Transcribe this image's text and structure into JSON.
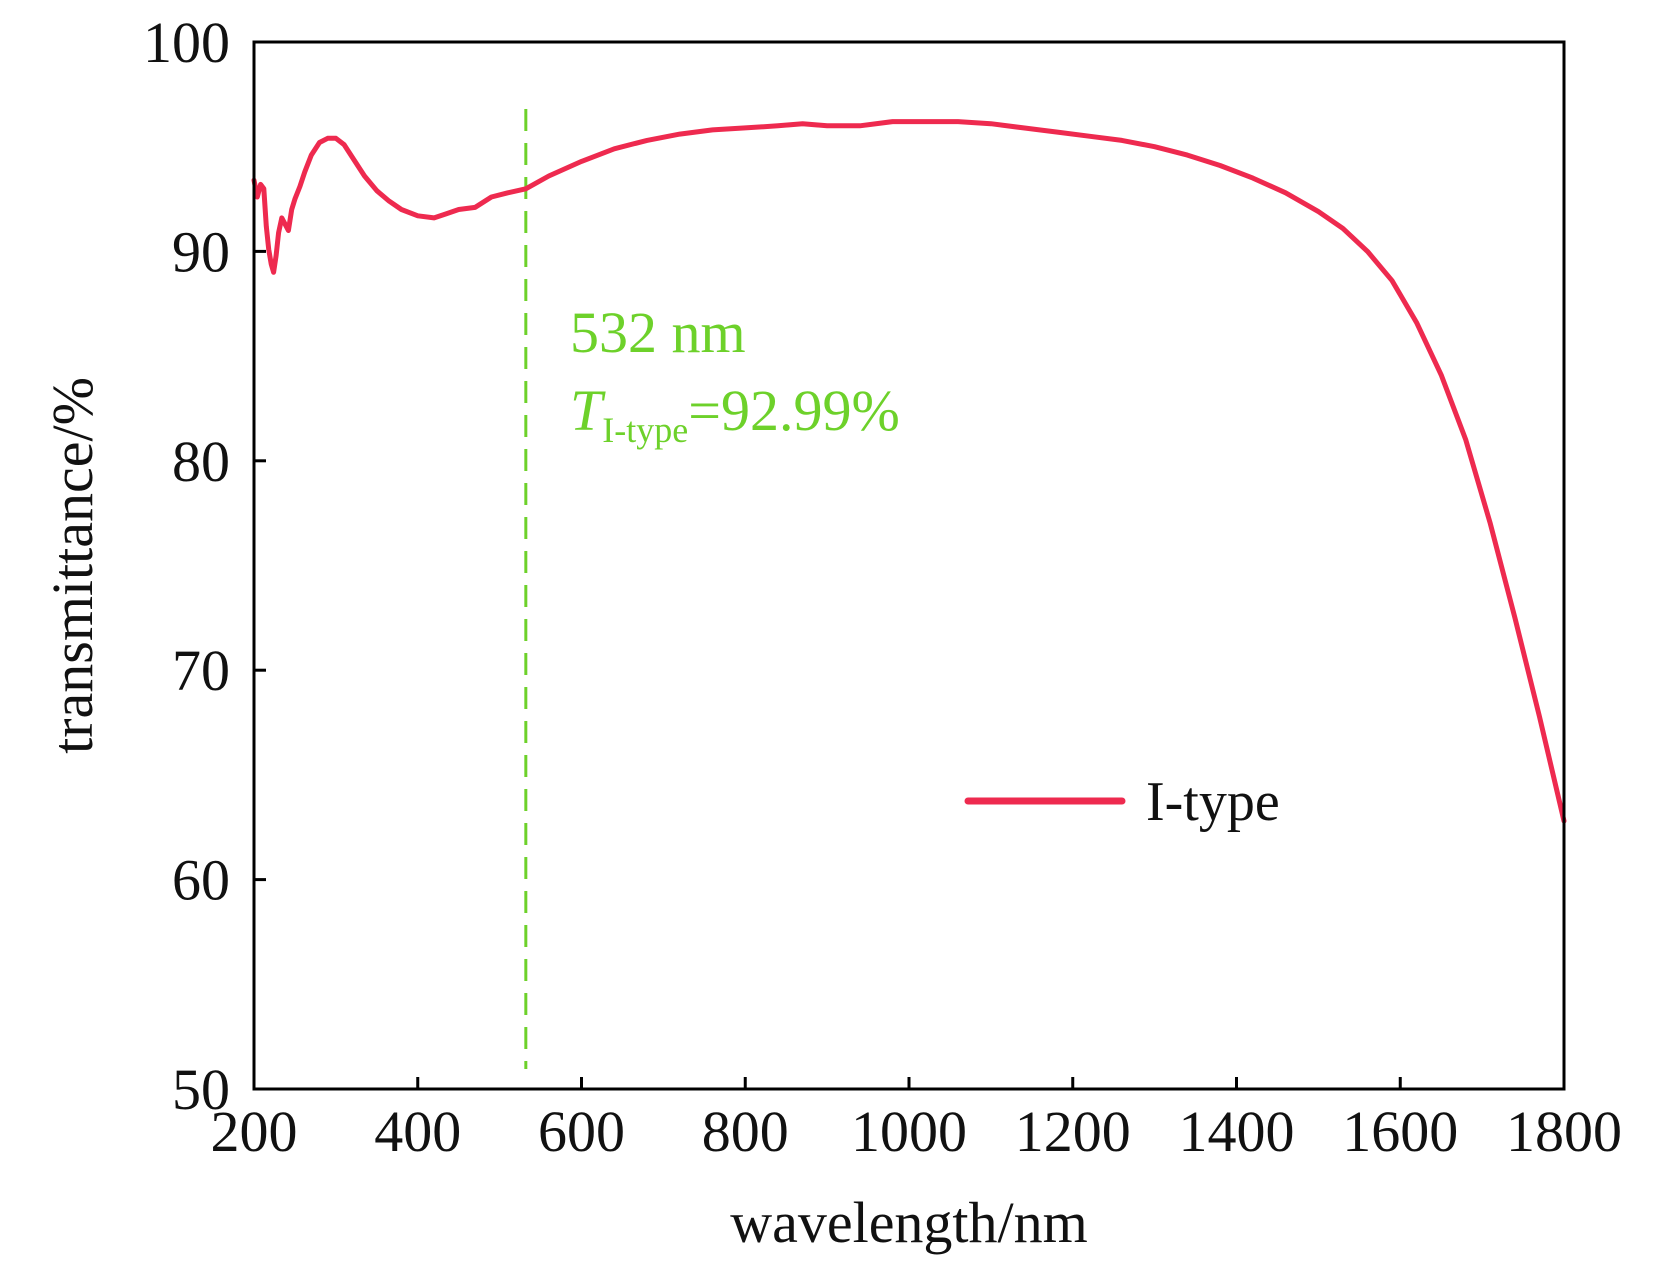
{
  "chart_data": {
    "type": "line",
    "xlabel": "wavelength/nm",
    "ylabel": "transmittance/%",
    "xlim": [
      200,
      1800
    ],
    "ylim": [
      50,
      100
    ],
    "x_ticks": [
      200,
      400,
      600,
      800,
      1000,
      1200,
      1400,
      1600,
      1800
    ],
    "y_ticks": [
      50,
      60,
      70,
      80,
      90,
      100
    ],
    "grid": false,
    "legend_position": "center-right",
    "series": [
      {
        "name": "I-type",
        "color": "#ee2a4f",
        "points": [
          [
            200,
            93.4
          ],
          [
            204,
            92.6
          ],
          [
            208,
            93.2
          ],
          [
            212,
            93.0
          ],
          [
            215,
            91.2
          ],
          [
            218,
            90.1
          ],
          [
            221,
            89.4
          ],
          [
            224,
            89.0
          ],
          [
            227,
            89.8
          ],
          [
            230,
            90.9
          ],
          [
            234,
            91.6
          ],
          [
            238,
            91.3
          ],
          [
            242,
            91.0
          ],
          [
            246,
            92.0
          ],
          [
            250,
            92.5
          ],
          [
            256,
            93.1
          ],
          [
            262,
            93.8
          ],
          [
            270,
            94.6
          ],
          [
            280,
            95.2
          ],
          [
            290,
            95.4
          ],
          [
            300,
            95.4
          ],
          [
            310,
            95.1
          ],
          [
            320,
            94.5
          ],
          [
            335,
            93.6
          ],
          [
            350,
            92.9
          ],
          [
            365,
            92.4
          ],
          [
            380,
            92.0
          ],
          [
            400,
            91.7
          ],
          [
            420,
            91.6
          ],
          [
            435,
            91.8
          ],
          [
            450,
            92.0
          ],
          [
            470,
            92.1
          ],
          [
            490,
            92.6
          ],
          [
            510,
            92.8
          ],
          [
            532,
            92.99
          ],
          [
            560,
            93.6
          ],
          [
            600,
            94.3
          ],
          [
            640,
            94.9
          ],
          [
            680,
            95.3
          ],
          [
            720,
            95.6
          ],
          [
            760,
            95.8
          ],
          [
            800,
            95.9
          ],
          [
            840,
            96.0
          ],
          [
            870,
            96.1
          ],
          [
            900,
            96.0
          ],
          [
            940,
            96.0
          ],
          [
            980,
            96.2
          ],
          [
            1020,
            96.2
          ],
          [
            1060,
            96.2
          ],
          [
            1100,
            96.1
          ],
          [
            1140,
            95.9
          ],
          [
            1180,
            95.7
          ],
          [
            1220,
            95.5
          ],
          [
            1260,
            95.3
          ],
          [
            1300,
            95.0
          ],
          [
            1340,
            94.6
          ],
          [
            1380,
            94.1
          ],
          [
            1420,
            93.5
          ],
          [
            1460,
            92.8
          ],
          [
            1500,
            91.9
          ],
          [
            1530,
            91.1
          ],
          [
            1560,
            90.0
          ],
          [
            1590,
            88.6
          ],
          [
            1620,
            86.6
          ],
          [
            1650,
            84.1
          ],
          [
            1680,
            81.0
          ],
          [
            1710,
            77.0
          ],
          [
            1740,
            72.5
          ],
          [
            1770,
            67.8
          ],
          [
            1800,
            62.8
          ]
        ]
      }
    ],
    "reference_line": {
      "x": 532,
      "color": "#6dd12a",
      "style": "dashed"
    },
    "annotation": {
      "line1": "532 nm",
      "line2_italic": "T",
      "line2_subscript": "I-type",
      "line2_value": "=92.99%",
      "color": "#6dd12a"
    }
  }
}
